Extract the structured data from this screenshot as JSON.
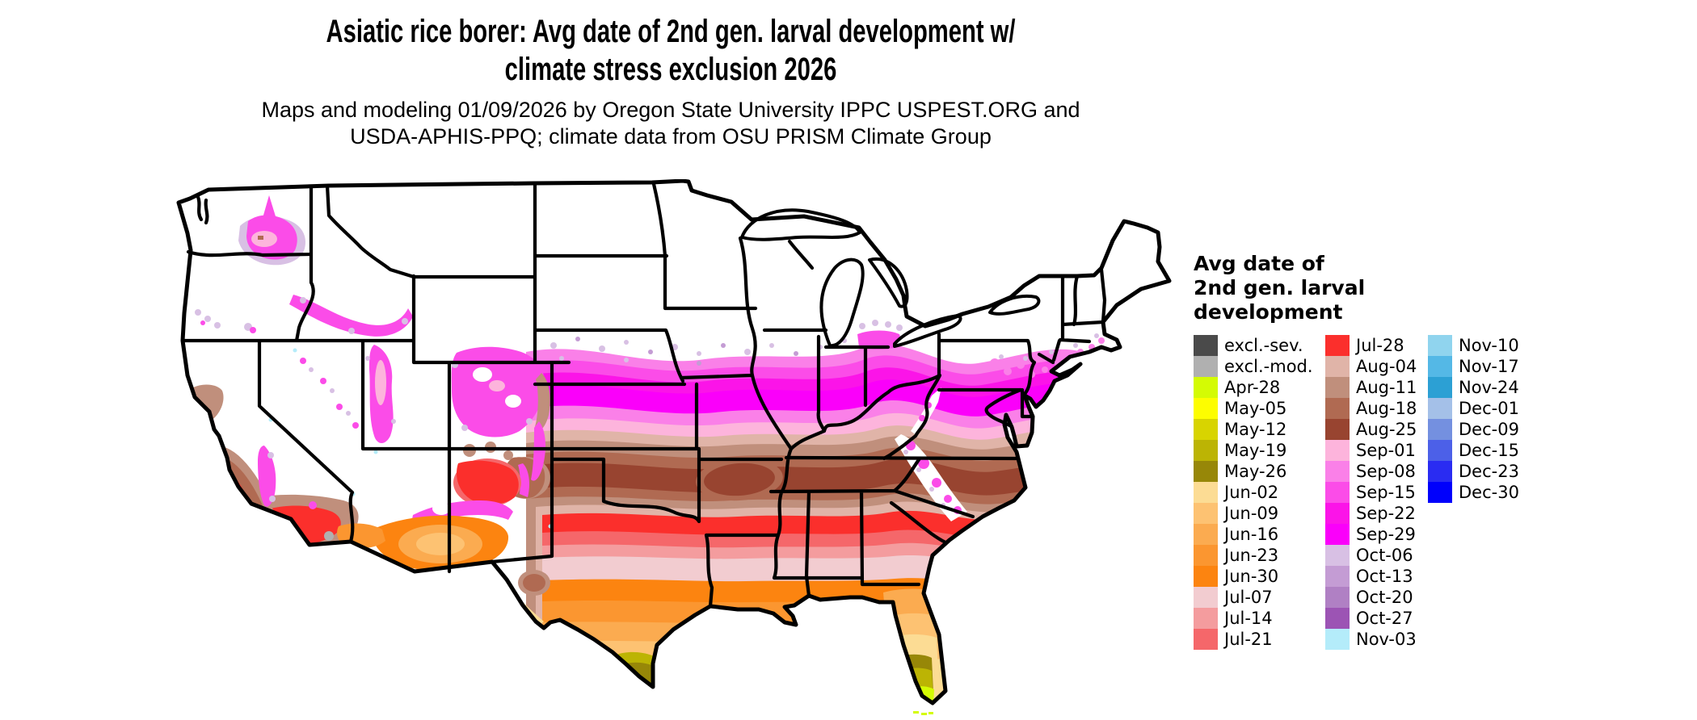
{
  "title": {
    "line1": "Asiatic rice borer: Avg date of 2nd gen. larval development w/",
    "line2": "climate stress exclusion 2026"
  },
  "subtitle": {
    "line1": "Maps and modeling 01/09/2026 by Oregon State University IPPC USPEST.ORG and",
    "line2": "USDA-APHIS-PPQ; climate data from OSU PRISM Climate Group"
  },
  "map": {
    "label": "united-states-pest-development-choropleth",
    "border_color": "#000000",
    "excluded_region_color": "#ffffff"
  },
  "palette": {
    "excl_sev": "#4a4a4a",
    "excl_mod": "#b0b0b0",
    "apr28": "#d4fb04",
    "may05": "#fdfd00",
    "may12": "#d8d400",
    "may19": "#bcb404",
    "may26": "#978708",
    "jun02": "#fcdc94",
    "jun09": "#fdc272",
    "jun16": "#fbab50",
    "jun23": "#fb9630",
    "jun30": "#fc8410",
    "jul07": "#f2ccd0",
    "jul14": "#f49c9e",
    "jul21": "#f5676a",
    "jul28": "#fb2f2c",
    "aug04": "#e0b4a8",
    "aug11": "#c08f7c",
    "aug18": "#b06a52",
    "aug25": "#984430",
    "sep01": "#fdb4dc",
    "sep08": "#fa80e8",
    "sep15": "#fb4ce8",
    "sep22": "#fb14e8",
    "sep29": "#fa00fa",
    "oct06": "#d8c0e4",
    "oct13": "#c49cd4",
    "oct20": "#b080c4",
    "oct27": "#9c54b4",
    "nov03": "#b4ecfa",
    "nov10": "#90d4ee",
    "nov17": "#54b8e6",
    "nov24": "#2ca0d4",
    "dec01": "#a4c0e8",
    "dec09": "#7490e0",
    "dec15": "#4c60e8",
    "dec23": "#2a2cf2",
    "dec30": "#0000fc",
    "white": "#ffffff"
  },
  "legend": {
    "title_lines": [
      "Avg date of",
      "2nd gen. larval",
      "development"
    ],
    "columns": [
      [
        {
          "label": "excl.-sev.",
          "key": "excl_sev"
        },
        {
          "label": "excl.-mod.",
          "key": "excl_mod"
        },
        {
          "label": "Apr-28",
          "key": "apr28"
        },
        {
          "label": "May-05",
          "key": "may05"
        },
        {
          "label": "May-12",
          "key": "may12"
        },
        {
          "label": "May-19",
          "key": "may19"
        },
        {
          "label": "May-26",
          "key": "may26"
        },
        {
          "label": "Jun-02",
          "key": "jun02"
        },
        {
          "label": "Jun-09",
          "key": "jun09"
        },
        {
          "label": "Jun-16",
          "key": "jun16"
        },
        {
          "label": "Jun-23",
          "key": "jun23"
        },
        {
          "label": "Jun-30",
          "key": "jun30"
        },
        {
          "label": "Jul-07",
          "key": "jul07"
        },
        {
          "label": "Jul-14",
          "key": "jul14"
        },
        {
          "label": "Jul-21",
          "key": "jul21"
        }
      ],
      [
        {
          "label": "Jul-28",
          "key": "jul28"
        },
        {
          "label": "Aug-04",
          "key": "aug04"
        },
        {
          "label": "Aug-11",
          "key": "aug11"
        },
        {
          "label": "Aug-18",
          "key": "aug18"
        },
        {
          "label": "Aug-25",
          "key": "aug25"
        },
        {
          "label": "Sep-01",
          "key": "sep01"
        },
        {
          "label": "Sep-08",
          "key": "sep08"
        },
        {
          "label": "Sep-15",
          "key": "sep15"
        },
        {
          "label": "Sep-22",
          "key": "sep22"
        },
        {
          "label": "Sep-29",
          "key": "sep29"
        },
        {
          "label": "Oct-06",
          "key": "oct06"
        },
        {
          "label": "Oct-13",
          "key": "oct13"
        },
        {
          "label": "Oct-20",
          "key": "oct20"
        },
        {
          "label": "Oct-27",
          "key": "oct27"
        },
        {
          "label": "Nov-03",
          "key": "nov03"
        }
      ],
      [
        {
          "label": "Nov-10",
          "key": "nov10"
        },
        {
          "label": "Nov-17",
          "key": "nov17"
        },
        {
          "label": "Nov-24",
          "key": "nov24"
        },
        {
          "label": "Dec-01",
          "key": "dec01"
        },
        {
          "label": "Dec-09",
          "key": "dec09"
        },
        {
          "label": "Dec-15",
          "key": "dec15"
        },
        {
          "label": "Dec-23",
          "key": "dec23"
        },
        {
          "label": "Dec-30",
          "key": "dec30"
        }
      ]
    ]
  }
}
